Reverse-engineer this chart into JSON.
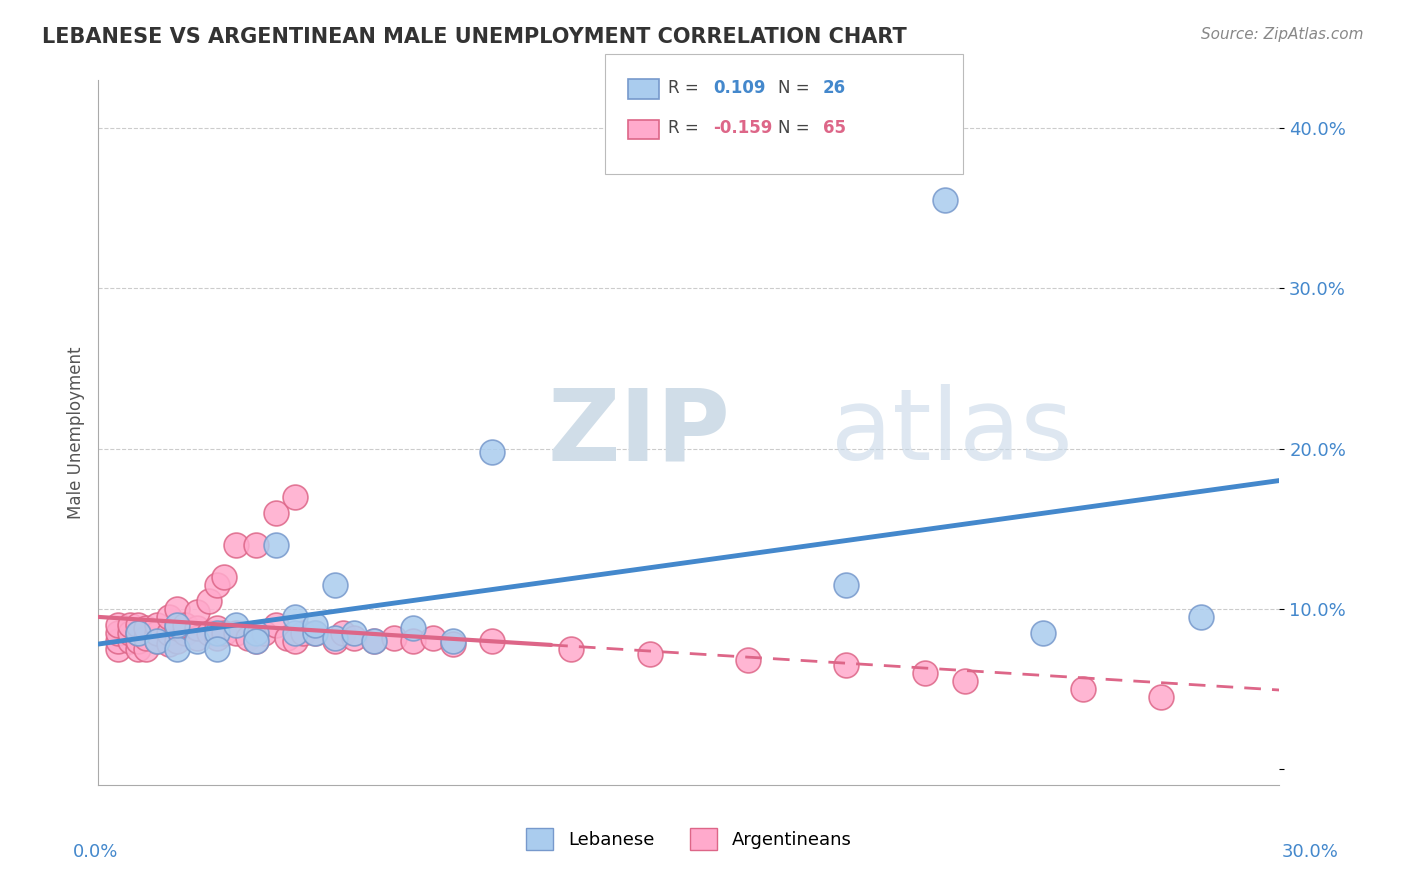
{
  "title": "LEBANESE VS ARGENTINEAN MALE UNEMPLOYMENT CORRELATION CHART",
  "source": "Source: ZipAtlas.com",
  "ylabel": "Male Unemployment",
  "xlim": [
    0.0,
    0.3
  ],
  "ylim": [
    -0.01,
    0.43
  ],
  "yticks": [
    0.0,
    0.1,
    0.2,
    0.3,
    0.4
  ],
  "ytick_labels": [
    "",
    "10.0%",
    "20.0%",
    "30.0%",
    "40.0%"
  ],
  "background_color": "#ffffff",
  "grid_color": "#cccccc",
  "lebanese_color": "#aaccee",
  "argentinean_color": "#ffaacc",
  "lebanese_edge": "#7799cc",
  "argentinean_edge": "#dd6688",
  "blue_line_color": "#4488cc",
  "pink_line_color": "#dd6688",
  "lebanese_x": [
    0.01,
    0.015,
    0.02,
    0.02,
    0.025,
    0.03,
    0.03,
    0.035,
    0.04,
    0.04,
    0.045,
    0.05,
    0.05,
    0.055,
    0.055,
    0.06,
    0.06,
    0.065,
    0.07,
    0.08,
    0.09,
    0.1,
    0.19,
    0.215,
    0.24,
    0.28
  ],
  "lebanese_y": [
    0.085,
    0.08,
    0.075,
    0.09,
    0.08,
    0.085,
    0.075,
    0.09,
    0.085,
    0.08,
    0.14,
    0.085,
    0.095,
    0.085,
    0.09,
    0.082,
    0.115,
    0.085,
    0.08,
    0.088,
    0.08,
    0.198,
    0.115,
    0.355,
    0.085,
    0.095
  ],
  "argentinean_x": [
    0.005,
    0.005,
    0.005,
    0.005,
    0.008,
    0.008,
    0.008,
    0.01,
    0.01,
    0.01,
    0.01,
    0.012,
    0.012,
    0.012,
    0.015,
    0.015,
    0.015,
    0.018,
    0.018,
    0.018,
    0.02,
    0.02,
    0.02,
    0.022,
    0.022,
    0.025,
    0.025,
    0.025,
    0.028,
    0.028,
    0.03,
    0.03,
    0.03,
    0.032,
    0.032,
    0.035,
    0.035,
    0.038,
    0.04,
    0.04,
    0.042,
    0.045,
    0.045,
    0.048,
    0.05,
    0.05,
    0.052,
    0.055,
    0.06,
    0.062,
    0.065,
    0.07,
    0.075,
    0.08,
    0.085,
    0.09,
    0.1,
    0.12,
    0.14,
    0.165,
    0.19,
    0.21,
    0.22,
    0.25,
    0.27
  ],
  "argentinean_y": [
    0.075,
    0.08,
    0.085,
    0.09,
    0.08,
    0.085,
    0.09,
    0.075,
    0.08,
    0.085,
    0.09,
    0.075,
    0.082,
    0.088,
    0.08,
    0.085,
    0.09,
    0.078,
    0.085,
    0.095,
    0.08,
    0.088,
    0.1,
    0.085,
    0.09,
    0.082,
    0.088,
    0.098,
    0.085,
    0.105,
    0.082,
    0.088,
    0.115,
    0.085,
    0.12,
    0.085,
    0.14,
    0.082,
    0.08,
    0.14,
    0.085,
    0.09,
    0.16,
    0.082,
    0.08,
    0.17,
    0.085,
    0.085,
    0.08,
    0.085,
    0.082,
    0.08,
    0.082,
    0.08,
    0.082,
    0.078,
    0.08,
    0.075,
    0.072,
    0.068,
    0.065,
    0.06,
    0.055,
    0.05,
    0.045
  ],
  "watermark_zip": "ZIP",
  "watermark_atlas": "atlas",
  "watermark_color": "#d0dde8"
}
